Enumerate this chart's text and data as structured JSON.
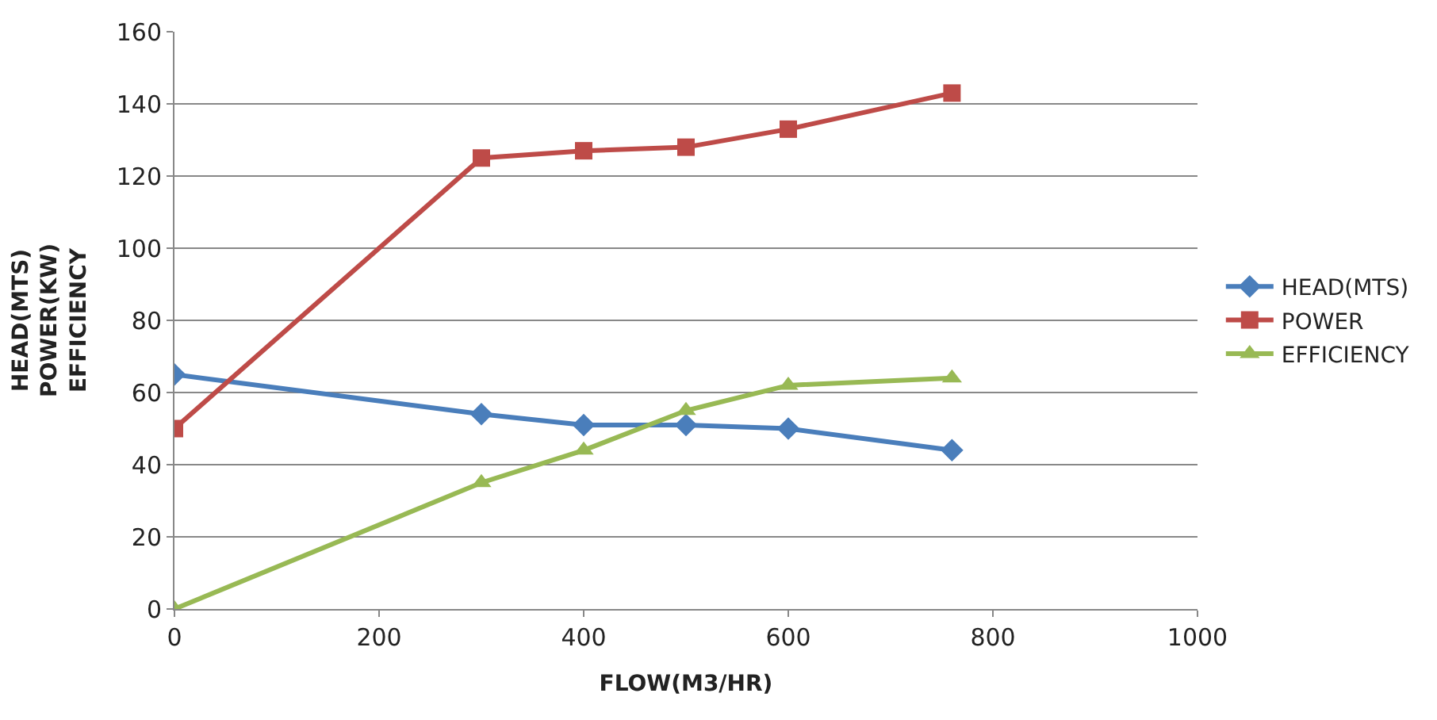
{
  "chart_data": {
    "type": "line",
    "xlabel": "FLOW(M3/HR)",
    "ylabel": "HEAD(MTS)\nPOWER(KW)\nEFFICIENCY",
    "x": [
      0,
      300,
      400,
      500,
      600,
      760
    ],
    "series": [
      {
        "name": "HEAD(MTS)",
        "color": "#4a7ebb",
        "marker": "diamond",
        "values": [
          65,
          54,
          51,
          51,
          50,
          44
        ]
      },
      {
        "name": "POWER",
        "color": "#be4b48",
        "marker": "square",
        "values": [
          50,
          125,
          127,
          128,
          133,
          143
        ]
      },
      {
        "name": "EFFICIENCY",
        "color": "#98b954",
        "marker": "triangle",
        "values": [
          0,
          35,
          44,
          55,
          62,
          64
        ]
      }
    ],
    "xlim": [
      0,
      1000
    ],
    "xticks": [
      0,
      200,
      400,
      600,
      800,
      1000
    ],
    "ylim": [
      0,
      160
    ],
    "yticks": [
      0,
      20,
      40,
      60,
      80,
      100,
      120,
      140,
      160
    ],
    "grid": "y",
    "legend": "right"
  }
}
